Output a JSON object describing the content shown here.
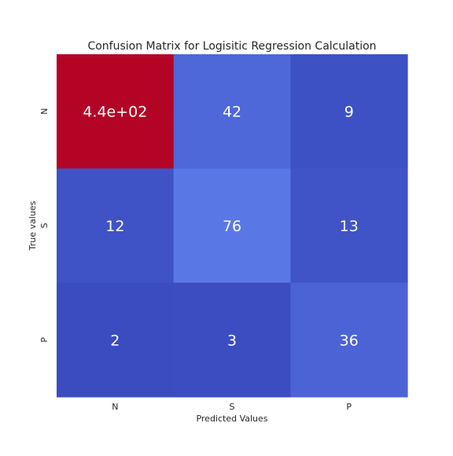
{
  "chart_data": {
    "type": "heatmap",
    "title": "Confusion Matrix for Logisitic Regression Calculation",
    "xlabel": "Predicted Values",
    "ylabel": "True values",
    "x_categories": [
      "N",
      "S",
      "P"
    ],
    "y_categories": [
      "N",
      "S",
      "P"
    ],
    "values": [
      [
        440,
        42,
        9
      ],
      [
        12,
        76,
        13
      ],
      [
        2,
        3,
        36
      ]
    ],
    "cell_labels": [
      [
        "4.4e+02",
        "42",
        "9"
      ],
      [
        "12",
        "76",
        "13"
      ],
      [
        "2",
        "3",
        "36"
      ]
    ],
    "colormap": "coolwarm",
    "grid": false,
    "colorbar": false,
    "annotation_color": "#ffffff",
    "label_color": "#262626"
  }
}
